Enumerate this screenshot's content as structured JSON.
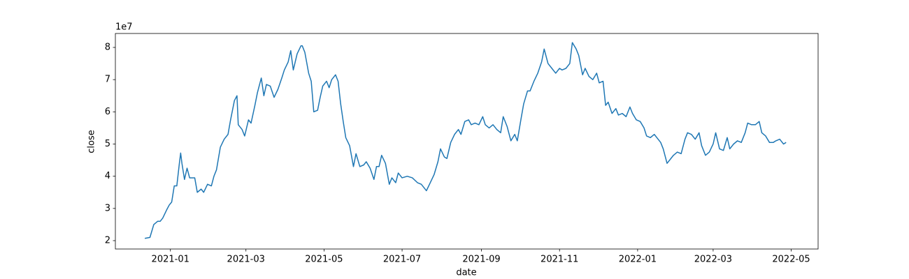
{
  "chart_data": {
    "type": "line",
    "x_label": "date",
    "y_label": "close",
    "y_offset_label": "1e7",
    "color": "#1f77b4",
    "x": [
      "2020-12-12",
      "2020-12-16",
      "2020-12-19",
      "2020-12-22",
      "2020-12-24",
      "2020-12-26",
      "2020-12-29",
      "2020-12-31",
      "2021-01-02",
      "2021-01-04",
      "2021-01-06",
      "2021-01-08",
      "2021-01-09",
      "2021-01-10",
      "2021-01-12",
      "2021-01-14",
      "2021-01-16",
      "2021-01-20",
      "2021-01-22",
      "2021-01-25",
      "2021-01-27",
      "2021-01-30",
      "2021-02-02",
      "2021-02-04",
      "2021-02-06",
      "2021-02-09",
      "2021-02-12",
      "2021-02-15",
      "2021-02-17",
      "2021-02-20",
      "2021-02-22",
      "2021-02-23",
      "2021-02-26",
      "2021-02-28",
      "2021-03-03",
      "2021-03-05",
      "2021-03-08",
      "2021-03-10",
      "2021-03-13",
      "2021-03-15",
      "2021-03-17",
      "2021-03-20",
      "2021-03-23",
      "2021-03-26",
      "2021-03-29",
      "2021-03-31",
      "2021-04-03",
      "2021-04-05",
      "2021-04-07",
      "2021-04-10",
      "2021-04-13",
      "2021-04-14",
      "2021-04-16",
      "2021-04-19",
      "2021-04-21",
      "2021-04-23",
      "2021-04-26",
      "2021-04-28",
      "2021-04-30",
      "2021-05-03",
      "2021-05-05",
      "2021-05-07",
      "2021-05-10",
      "2021-05-12",
      "2021-05-14",
      "2021-05-16",
      "2021-05-18",
      "2021-05-21",
      "2021-05-24",
      "2021-05-26",
      "2021-05-29",
      "2021-06-01",
      "2021-06-03",
      "2021-06-06",
      "2021-06-09",
      "2021-06-11",
      "2021-06-13",
      "2021-06-15",
      "2021-06-18",
      "2021-06-21",
      "2021-06-23",
      "2021-06-26",
      "2021-06-28",
      "2021-07-01",
      "2021-07-05",
      "2021-07-09",
      "2021-07-13",
      "2021-07-16",
      "2021-07-20",
      "2021-07-23",
      "2021-07-26",
      "2021-07-29",
      "2021-07-31",
      "2021-08-03",
      "2021-08-05",
      "2021-08-08",
      "2021-08-11",
      "2021-08-14",
      "2021-08-16",
      "2021-08-19",
      "2021-08-22",
      "2021-08-24",
      "2021-08-27",
      "2021-08-30",
      "2021-09-02",
      "2021-09-04",
      "2021-09-07",
      "2021-09-10",
      "2021-09-13",
      "2021-09-16",
      "2021-09-18",
      "2021-09-21",
      "2021-09-24",
      "2021-09-27",
      "2021-09-29",
      "2021-10-02",
      "2021-10-04",
      "2021-10-07",
      "2021-10-09",
      "2021-10-12",
      "2021-10-15",
      "2021-10-18",
      "2021-10-20",
      "2021-10-23",
      "2021-10-26",
      "2021-10-29",
      "2021-11-01",
      "2021-11-03",
      "2021-11-06",
      "2021-11-09",
      "2021-11-11",
      "2021-11-14",
      "2021-11-16",
      "2021-11-19",
      "2021-11-21",
      "2021-11-24",
      "2021-11-27",
      "2021-11-30",
      "2021-12-02",
      "2021-12-05",
      "2021-12-07",
      "2021-12-09",
      "2021-12-12",
      "2021-12-15",
      "2021-12-17",
      "2021-12-20",
      "2021-12-23",
      "2021-12-26",
      "2021-12-28",
      "2021-12-31",
      "2022-01-03",
      "2022-01-06",
      "2022-01-08",
      "2022-01-11",
      "2022-01-14",
      "2022-01-17",
      "2022-01-19",
      "2022-01-21",
      "2022-01-24",
      "2022-01-27",
      "2022-01-29",
      "2022-02-01",
      "2022-02-04",
      "2022-02-07",
      "2022-02-09",
      "2022-02-12",
      "2022-02-15",
      "2022-02-18",
      "2022-02-20",
      "2022-02-23",
      "2022-02-26",
      "2022-03-01",
      "2022-03-03",
      "2022-03-06",
      "2022-03-09",
      "2022-03-12",
      "2022-03-14",
      "2022-03-17",
      "2022-03-20",
      "2022-03-23",
      "2022-03-26",
      "2022-03-28",
      "2022-03-31",
      "2022-04-03",
      "2022-04-06",
      "2022-04-08",
      "2022-04-11",
      "2022-04-14",
      "2022-04-17",
      "2022-04-19",
      "2022-04-22",
      "2022-04-25",
      "2022-04-27"
    ],
    "values": [
      20700000,
      21000000,
      25000000,
      26000000,
      26000000,
      27000000,
      29500000,
      31000000,
      32000000,
      37000000,
      37000000,
      44000000,
      47200000,
      44000000,
      39000000,
      42500000,
      39500000,
      39500000,
      35000000,
      36000000,
      35000000,
      37500000,
      37000000,
      40000000,
      42000000,
      49000000,
      51500000,
      53000000,
      57500000,
      63500000,
      65000000,
      56000000,
      54500000,
      52500000,
      57500000,
      56500000,
      62000000,
      66000000,
      70500000,
      65000000,
      68500000,
      68000000,
      64500000,
      67000000,
      70500000,
      73000000,
      75500000,
      79000000,
      73000000,
      78000000,
      80500000,
      80500000,
      78500000,
      72000000,
      69500000,
      60000000,
      60500000,
      64500000,
      68000000,
      69500000,
      67500000,
      70000000,
      71500000,
      69500000,
      62500000,
      57000000,
      52000000,
      49500000,
      43000000,
      47000000,
      43000000,
      43500000,
      44500000,
      42500000,
      39000000,
      43000000,
      43000000,
      46500000,
      44000000,
      37500000,
      39500000,
      38000000,
      41000000,
      39500000,
      40000000,
      39500000,
      38000000,
      37500000,
      35500000,
      38000000,
      40500000,
      44500000,
      48500000,
      46000000,
      45500000,
      50500000,
      53000000,
      54500000,
      53000000,
      57000000,
      57500000,
      56000000,
      56500000,
      56000000,
      58500000,
      56000000,
      55000000,
      56000000,
      54500000,
      53500000,
      58500000,
      55500000,
      51000000,
      53000000,
      51000000,
      58000000,
      62500000,
      66500000,
      66500000,
      69500000,
      72000000,
      75500000,
      79500000,
      75000000,
      73500000,
      72000000,
      73500000,
      73000000,
      73500000,
      75000000,
      81500000,
      79500000,
      77500000,
      71500000,
      73500000,
      71000000,
      70000000,
      72000000,
      69000000,
      69500000,
      62000000,
      63000000,
      59500000,
      61000000,
      59000000,
      59500000,
      58500000,
      61500000,
      59500000,
      57500000,
      57000000,
      55000000,
      52500000,
      52000000,
      53000000,
      51500000,
      50500000,
      48500000,
      44000000,
      45500000,
      46500000,
      47500000,
      47000000,
      51500000,
      53500000,
      53000000,
      51500000,
      53500000,
      49500000,
      46500000,
      47500000,
      50000000,
      53500000,
      48500000,
      48000000,
      52000000,
      48500000,
      50000000,
      51000000,
      50500000,
      53500000,
      56500000,
      56000000,
      56000000,
      57000000,
      53500000,
      52500000,
      50500000,
      50500000,
      51000000,
      51500000,
      50000000,
      50500000
    ],
    "xlim": [
      "2020-11-19",
      "2022-05-22"
    ],
    "xticks": [
      {
        "value": "2021-01-01",
        "label": "2021-01"
      },
      {
        "value": "2021-03-01",
        "label": "2021-03"
      },
      {
        "value": "2021-05-01",
        "label": "2021-05"
      },
      {
        "value": "2021-07-01",
        "label": "2021-07"
      },
      {
        "value": "2021-09-01",
        "label": "2021-09"
      },
      {
        "value": "2021-11-01",
        "label": "2021-11"
      },
      {
        "value": "2022-01-01",
        "label": "2022-01"
      },
      {
        "value": "2022-03-01",
        "label": "2022-03"
      },
      {
        "value": "2022-05-01",
        "label": "2022-05"
      }
    ],
    "ylim": [
      17400000,
      84330000
    ],
    "yticks": [
      {
        "value": 20000000,
        "label": "2"
      },
      {
        "value": 30000000,
        "label": "3"
      },
      {
        "value": 40000000,
        "label": "4"
      },
      {
        "value": 50000000,
        "label": "5"
      },
      {
        "value": 60000000,
        "label": "6"
      },
      {
        "value": 70000000,
        "label": "7"
      },
      {
        "value": 80000000,
        "label": "8"
      }
    ],
    "grid": false
  }
}
